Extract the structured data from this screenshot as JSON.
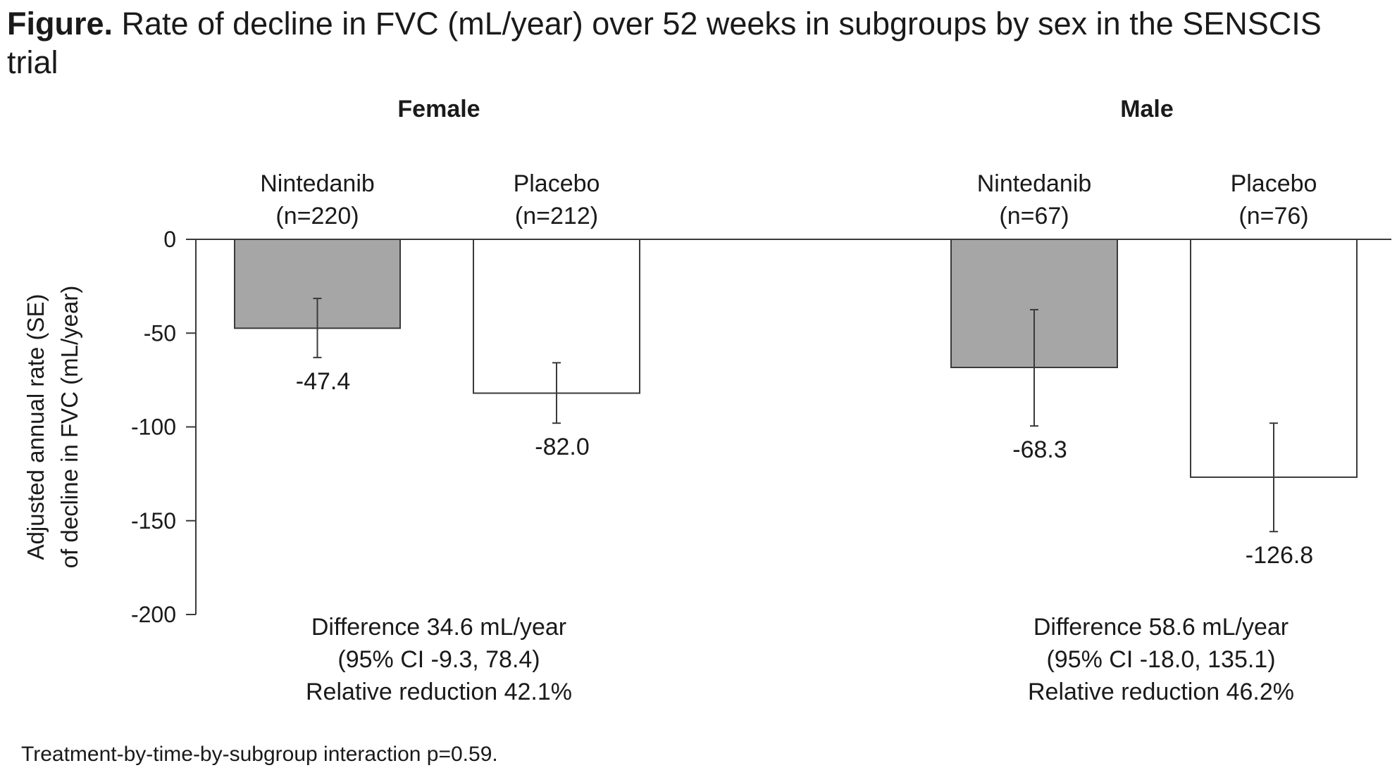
{
  "title": {
    "lead": "Figure.",
    "text": "Rate of decline in FVC (mL/year) over 52 weeks in subgroups by sex in the SENSCIS trial"
  },
  "footnote": "Treatment-by-time-by-subgroup interaction p=0.59.",
  "colors": {
    "nintedanib": "#a6a6a6",
    "placebo": "#ffffff",
    "stroke": "#3a3a3a",
    "text": "#1a1a1a"
  },
  "chart_data": {
    "type": "bar",
    "ylabel_line1": "Adjusted annual rate (SE)",
    "ylabel_line2": "of decline in FVC (mL/year)",
    "ylim": [
      -200,
      0
    ],
    "yticks": [
      0,
      -50,
      -100,
      -150,
      -200
    ],
    "ytick_labels": [
      "0",
      "-50",
      "-100",
      "-150",
      "-200"
    ],
    "grid": false,
    "groups": [
      {
        "name": "Female",
        "bars": [
          {
            "label": "Nintedanib",
            "n_label": "(n=220)",
            "value": -47.4,
            "value_label": "-47.4",
            "err_low": -63.0,
            "err_high": -31.5,
            "fill": "nintedanib"
          },
          {
            "label": "Placebo",
            "n_label": "(n=212)",
            "value": -82.0,
            "value_label": "-82.0",
            "err_low": -98.0,
            "err_high": -65.8,
            "fill": "placebo"
          }
        ],
        "stats": [
          "Difference 34.6 mL/year",
          "(95% CI -9.3, 78.4)",
          "Relative reduction 42.1%"
        ]
      },
      {
        "name": "Male",
        "bars": [
          {
            "label": "Nintedanib",
            "n_label": "(n=67)",
            "value": -68.3,
            "value_label": "-68.3",
            "err_low": -99.5,
            "err_high": -37.5,
            "fill": "nintedanib"
          },
          {
            "label": "Placebo",
            "n_label": "(n=76)",
            "value": -126.8,
            "value_label": "-126.8",
            "err_low": -155.8,
            "err_high": -98.0,
            "fill": "placebo"
          }
        ],
        "stats": [
          "Difference 58.6 mL/year",
          "(95% CI -18.0, 135.1)",
          "Relative reduction 46.2%"
        ]
      }
    ]
  }
}
